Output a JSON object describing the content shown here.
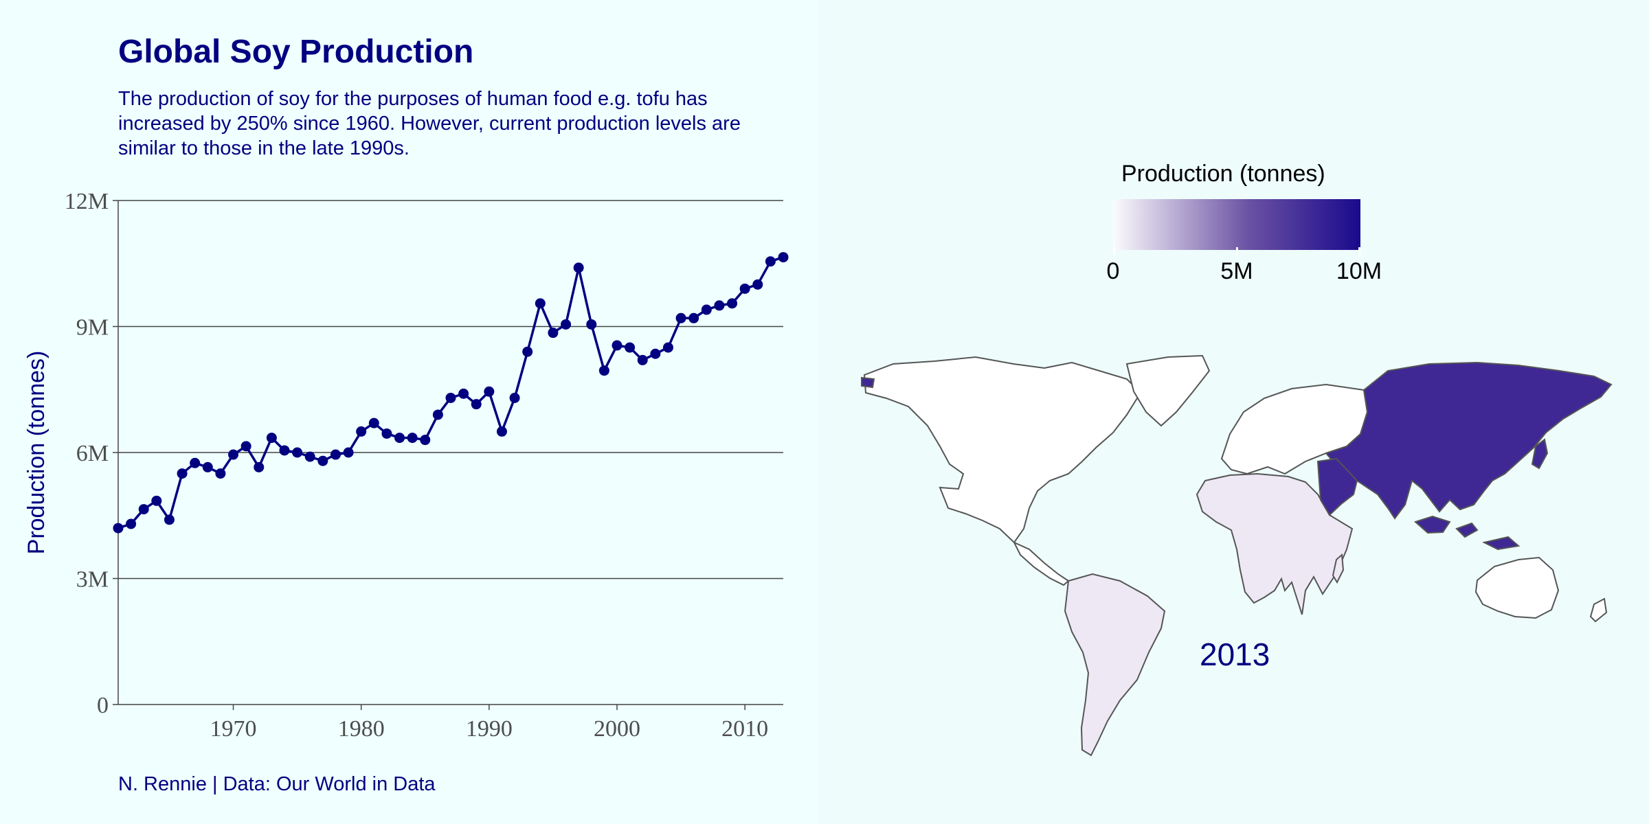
{
  "title": "Global Soy Production",
  "subtitle": "The production of soy for the purposes of human food e.g. tofu has increased by 250% since 1960. However, current production levels are similar to those in the late 1990s.",
  "caption": "N. Rennie | Data: Our World in Data",
  "colors": {
    "background": "#F0FFFF",
    "line": "#000080",
    "text": "#000080",
    "grid": "#444444",
    "map_high": "#3F2894",
    "map_low": "#EEE8F5",
    "map_none": "#FFFFFF"
  },
  "chart_data": [
    {
      "type": "line",
      "title": "Global Soy Production",
      "xlabel": "",
      "ylabel": "Production (tonnes)",
      "xlim": [
        1961,
        2013
      ],
      "ylim": [
        0,
        12000000
      ],
      "x_ticks": [
        1970,
        1980,
        1990,
        2000,
        2010
      ],
      "x_tick_labels": [
        "1970",
        "1980",
        "1990",
        "2000",
        "2010"
      ],
      "y_ticks": [
        0,
        3000000,
        6000000,
        9000000,
        12000000
      ],
      "y_tick_labels": [
        "0",
        "3M",
        "6M",
        "9M",
        "12M"
      ],
      "grid": "horizontal major",
      "markers": true,
      "x": [
        1961,
        1962,
        1963,
        1964,
        1965,
        1966,
        1967,
        1968,
        1969,
        1970,
        1971,
        1972,
        1973,
        1974,
        1975,
        1976,
        1977,
        1978,
        1979,
        1980,
        1981,
        1982,
        1983,
        1984,
        1985,
        1986,
        1987,
        1988,
        1989,
        1990,
        1991,
        1992,
        1993,
        1994,
        1995,
        1996,
        1997,
        1998,
        1999,
        2000,
        2001,
        2002,
        2003,
        2004,
        2005,
        2006,
        2007,
        2008,
        2009,
        2010,
        2011,
        2012,
        2013
      ],
      "series": [
        {
          "values": [
            4200000,
            4300000,
            4650000,
            4850000,
            4400000,
            5500000,
            5750000,
            5650000,
            5500000,
            5950000,
            6150000,
            5650000,
            6350000,
            6050000,
            6000000,
            5900000,
            5800000,
            5950000,
            6000000,
            6500000,
            6700000,
            6450000,
            6350000,
            6350000,
            6300000,
            6900000,
            7300000,
            7400000,
            7150000,
            7450000,
            6500000,
            7300000,
            8400000,
            9550000,
            8850000,
            9050000,
            10400000,
            9050000,
            7950000,
            8550000,
            8500000,
            8200000,
            8350000,
            8500000,
            9200000,
            9200000,
            9400000,
            9500000,
            9550000,
            9900000,
            10000000,
            10550000,
            10650000
          ]
        }
      ]
    },
    {
      "type": "choropleth map",
      "year_label": "2013",
      "legend_title": "Production (tonnes)",
      "legend_range": [
        0,
        10000000
      ],
      "legend_labels": [
        "0",
        "5M",
        "10M"
      ],
      "legend_values": [
        0,
        5000000,
        10000000
      ],
      "regions": [
        {
          "name": "Asia",
          "approx_value": 9000000
        },
        {
          "name": "Africa",
          "approx_value": 600000
        },
        {
          "name": "South America",
          "approx_value": 600000
        },
        {
          "name": "North America",
          "approx_value": 0
        },
        {
          "name": "Europe",
          "approx_value": 0
        },
        {
          "name": "Oceania",
          "approx_value": 0
        }
      ]
    }
  ]
}
